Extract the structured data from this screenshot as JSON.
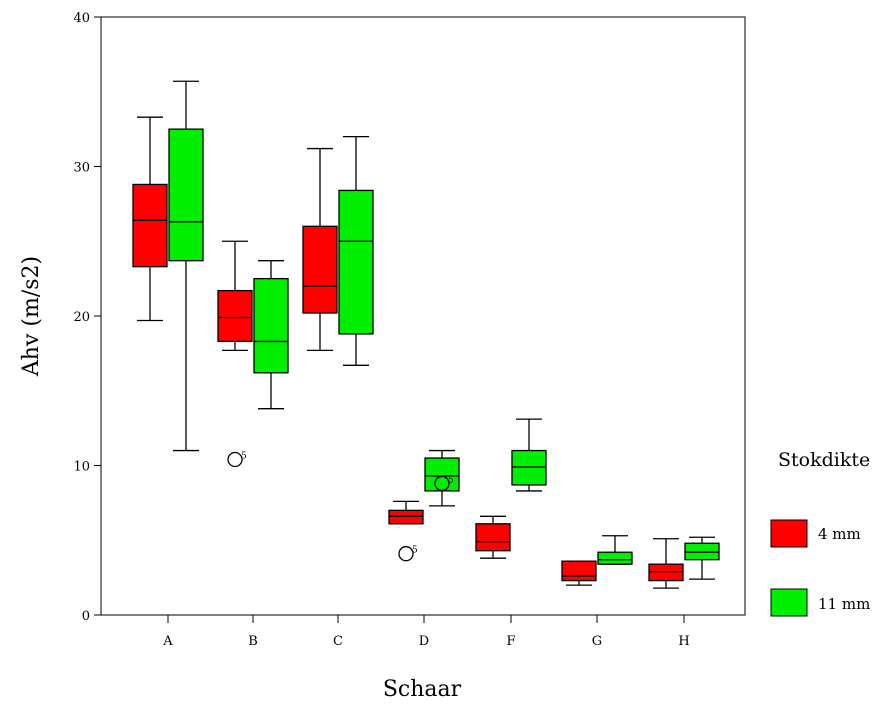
{
  "chart_data": {
    "type": "boxplot",
    "xlabel": "Schaar",
    "ylabel": "Ahv (m/s2)",
    "ylim": [
      0,
      40
    ],
    "yticks": [
      0,
      10,
      20,
      30,
      40
    ],
    "grid": false,
    "categories": [
      "A",
      "B",
      "C",
      "D",
      "F",
      "G",
      "H"
    ],
    "legend": {
      "title": "Stokdikte",
      "position": "right",
      "entries": [
        "4 mm",
        "11 mm"
      ]
    },
    "series": [
      {
        "name": "4 mm",
        "color": "#ff0000",
        "boxes": [
          {
            "whisker_low": 19.7,
            "q1": 23.3,
            "median": 26.4,
            "q3": 28.8,
            "whisker_high": 33.3
          },
          {
            "whisker_low": 17.7,
            "q1": 18.3,
            "median": 19.9,
            "q3": 21.7,
            "whisker_high": 25.0
          },
          {
            "whisker_low": 17.7,
            "q1": 20.2,
            "median": 22.0,
            "q3": 26.0,
            "whisker_high": 31.2
          },
          {
            "whisker_low": 6.1,
            "q1": 6.1,
            "median": 6.6,
            "q3": 7.0,
            "whisker_high": 7.6
          },
          {
            "whisker_low": 3.8,
            "q1": 4.3,
            "median": 4.9,
            "q3": 6.1,
            "whisker_high": 6.6
          },
          {
            "whisker_low": 2.0,
            "q1": 2.3,
            "median": 2.6,
            "q3": 3.6,
            "whisker_high": 3.6
          },
          {
            "whisker_low": 1.8,
            "q1": 2.3,
            "median": 2.9,
            "q3": 3.4,
            "whisker_high": 5.1
          }
        ],
        "outliers": [
          {
            "category": "B",
            "value": 10.4,
            "label": "5"
          },
          {
            "category": "D",
            "value": 4.1,
            "label": "5"
          }
        ]
      },
      {
        "name": "11 mm",
        "color": "#00ee00",
        "boxes": [
          {
            "whisker_low": 11.0,
            "q1": 23.7,
            "median": 26.3,
            "q3": 32.5,
            "whisker_high": 35.7
          },
          {
            "whisker_low": 13.8,
            "q1": 16.2,
            "median": 18.3,
            "q3": 22.5,
            "whisker_high": 23.7
          },
          {
            "whisker_low": 16.7,
            "q1": 18.8,
            "median": 25.0,
            "q3": 28.4,
            "whisker_high": 32.0
          },
          {
            "whisker_low": 7.3,
            "q1": 8.3,
            "median": 9.3,
            "q3": 10.5,
            "whisker_high": 11.0
          },
          {
            "whisker_low": 8.3,
            "q1": 8.7,
            "median": 9.9,
            "q3": 11.0,
            "whisker_high": 13.1
          },
          {
            "whisker_low": 3.4,
            "q1": 3.4,
            "median": 3.7,
            "q3": 4.2,
            "whisker_high": 5.3
          },
          {
            "whisker_low": 2.4,
            "q1": 3.7,
            "median": 4.2,
            "q3": 4.8,
            "whisker_high": 5.2
          }
        ],
        "outliers": [
          {
            "category": "D",
            "value": 8.8,
            "label": "5"
          }
        ]
      }
    ]
  }
}
